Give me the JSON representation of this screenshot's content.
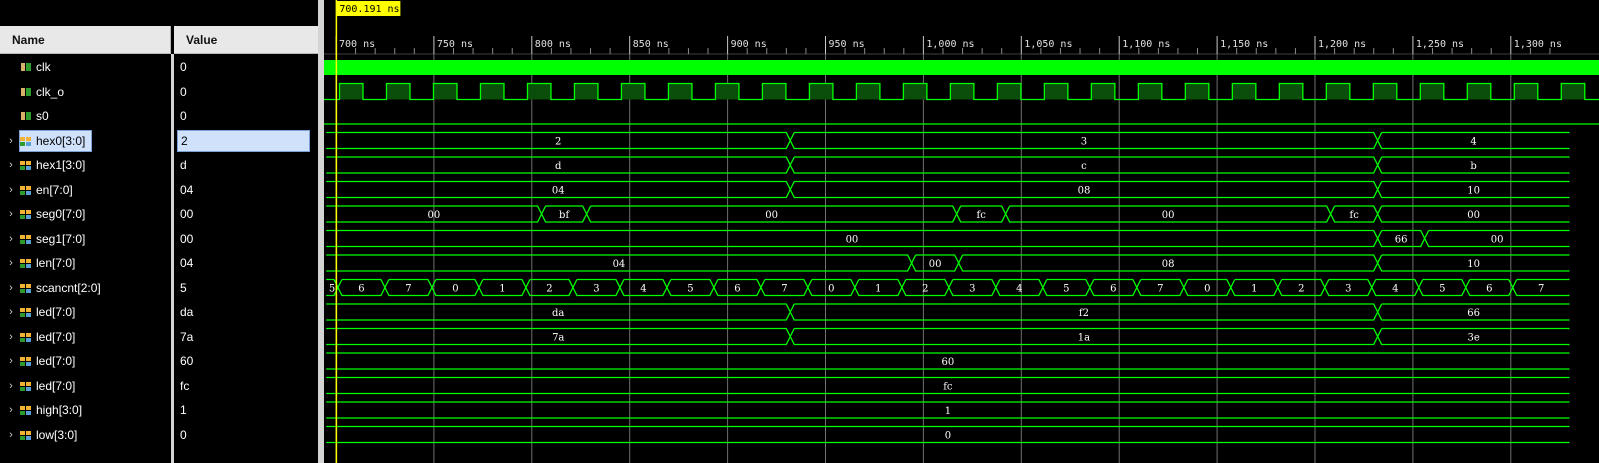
{
  "header": {
    "name_label": "Name",
    "value_label": "Value"
  },
  "cursor": {
    "time_label": "700.191 ns"
  },
  "timeline": {
    "ticks": [
      {
        "t": 700,
        "label": "700 ns"
      },
      {
        "t": 750,
        "label": "750 ns"
      },
      {
        "t": 800,
        "label": "800 ns"
      },
      {
        "t": 850,
        "label": "850 ns"
      },
      {
        "t": 900,
        "label": "900 ns"
      },
      {
        "t": 950,
        "label": "950 ns"
      },
      {
        "t": 1000,
        "label": "1,000 ns"
      },
      {
        "t": 1050,
        "label": "1,050 ns"
      },
      {
        "t": 1100,
        "label": "1,100 ns"
      },
      {
        "t": 1150,
        "label": "1,150 ns"
      },
      {
        "t": 1200,
        "label": "1,200 ns"
      },
      {
        "t": 1250,
        "label": "1,250 ns"
      },
      {
        "t": 1300,
        "label": "1,300 ns"
      }
    ]
  },
  "colors": {
    "wave": "#00ff00",
    "wave_fill": "#0b4d0b",
    "cursor": "#ffff00",
    "grid": "#707070",
    "bus_icon": "#f2b233",
    "bit_icon": "#2d9c2d",
    "selected_bg": "#cfe1fb"
  },
  "signals": [
    {
      "name": "clk",
      "value": "0",
      "kind": "bit",
      "icon": "bit-signal-icon",
      "clock": "fast",
      "expand": false
    },
    {
      "name": "clk_o",
      "value": "0",
      "kind": "bit",
      "icon": "bit-signal-icon",
      "clock": "slow",
      "expand": false
    },
    {
      "name": "s0",
      "value": "0",
      "kind": "bit",
      "icon": "bit-signal-icon",
      "flat": 0,
      "expand": false
    },
    {
      "name": "hex0[3:0]",
      "value": "2",
      "kind": "bus",
      "icon": "bus-signal-icon",
      "expand": true,
      "selected": true,
      "segments": [
        {
          "from": 695,
          "to": 932,
          "v": "2"
        },
        {
          "from": 932,
          "to": 1232,
          "v": "3"
        },
        {
          "from": 1232,
          "to": 1330,
          "v": "4"
        }
      ]
    },
    {
      "name": "hex1[3:0]",
      "value": "d",
      "kind": "bus",
      "icon": "bus-signal-icon",
      "expand": true,
      "segments": [
        {
          "from": 695,
          "to": 932,
          "v": "d"
        },
        {
          "from": 932,
          "to": 1232,
          "v": "c"
        },
        {
          "from": 1232,
          "to": 1330,
          "v": "b"
        }
      ]
    },
    {
      "name": "en[7:0]",
      "value": "04",
      "kind": "bus",
      "icon": "bus-signal-icon",
      "expand": true,
      "segments": [
        {
          "from": 695,
          "to": 932,
          "v": "04"
        },
        {
          "from": 932,
          "to": 1232,
          "v": "08"
        },
        {
          "from": 1232,
          "to": 1330,
          "v": "10"
        }
      ]
    },
    {
      "name": "seg0[7:0]",
      "value": "00",
      "kind": "bus",
      "icon": "bus-signal-icon",
      "expand": true,
      "segments": [
        {
          "from": 695,
          "to": 805,
          "v": "00"
        },
        {
          "from": 805,
          "to": 828,
          "v": "bf"
        },
        {
          "from": 828,
          "to": 1017,
          "v": "00"
        },
        {
          "from": 1017,
          "to": 1042,
          "v": "fc"
        },
        {
          "from": 1042,
          "to": 1208,
          "v": "00"
        },
        {
          "from": 1208,
          "to": 1232,
          "v": "fc"
        },
        {
          "from": 1232,
          "to": 1330,
          "v": "00"
        }
      ]
    },
    {
      "name": "seg1[7:0]",
      "value": "00",
      "kind": "bus",
      "icon": "bus-signal-icon",
      "expand": true,
      "segments": [
        {
          "from": 695,
          "to": 1232,
          "v": "00"
        },
        {
          "from": 1232,
          "to": 1256,
          "v": "66"
        },
        {
          "from": 1256,
          "to": 1330,
          "v": "00"
        }
      ]
    },
    {
      "name": "len[7:0]",
      "value": "04",
      "kind": "bus",
      "icon": "bus-signal-icon",
      "expand": true,
      "segments": [
        {
          "from": 695,
          "to": 994,
          "v": "04"
        },
        {
          "from": 994,
          "to": 1018,
          "v": "00"
        },
        {
          "from": 1018,
          "to": 1232,
          "v": "08"
        },
        {
          "from": 1232,
          "to": 1330,
          "v": "10"
        }
      ]
    },
    {
      "name": "scancnt[2:0]",
      "value": "5",
      "kind": "bus",
      "icon": "bus-signal-icon",
      "expand": true,
      "segments": [
        {
          "from": 695,
          "to": 701,
          "v": "5"
        },
        {
          "from": 701,
          "to": 725,
          "v": "6"
        },
        {
          "from": 725,
          "to": 749,
          "v": "7"
        },
        {
          "from": 749,
          "to": 773,
          "v": "0"
        },
        {
          "from": 773,
          "to": 797,
          "v": "1"
        },
        {
          "from": 797,
          "to": 821,
          "v": "2"
        },
        {
          "from": 821,
          "to": 845,
          "v": "3"
        },
        {
          "from": 845,
          "to": 869,
          "v": "4"
        },
        {
          "from": 869,
          "to": 893,
          "v": "5"
        },
        {
          "from": 893,
          "to": 917,
          "v": "6"
        },
        {
          "from": 917,
          "to": 941,
          "v": "7"
        },
        {
          "from": 941,
          "to": 965,
          "v": "0"
        },
        {
          "from": 965,
          "to": 989,
          "v": "1"
        },
        {
          "from": 989,
          "to": 1013,
          "v": "2"
        },
        {
          "from": 1013,
          "to": 1037,
          "v": "3"
        },
        {
          "from": 1037,
          "to": 1061,
          "v": "4"
        },
        {
          "from": 1061,
          "to": 1085,
          "v": "5"
        },
        {
          "from": 1085,
          "to": 1109,
          "v": "6"
        },
        {
          "from": 1109,
          "to": 1133,
          "v": "7"
        },
        {
          "from": 1133,
          "to": 1157,
          "v": "0"
        },
        {
          "from": 1157,
          "to": 1181,
          "v": "1"
        },
        {
          "from": 1181,
          "to": 1205,
          "v": "2"
        },
        {
          "from": 1205,
          "to": 1229,
          "v": "3"
        },
        {
          "from": 1229,
          "to": 1253,
          "v": "4"
        },
        {
          "from": 1253,
          "to": 1277,
          "v": "5"
        },
        {
          "from": 1277,
          "to": 1301,
          "v": "6"
        },
        {
          "from": 1301,
          "to": 1330,
          "v": "7"
        }
      ]
    },
    {
      "name": "led[7:0]",
      "value": "da",
      "kind": "bus",
      "icon": "bus-signal-icon",
      "expand": true,
      "segments": [
        {
          "from": 695,
          "to": 932,
          "v": "da"
        },
        {
          "from": 932,
          "to": 1232,
          "v": "f2"
        },
        {
          "from": 1232,
          "to": 1330,
          "v": "66"
        }
      ]
    },
    {
      "name": "led[7:0]",
      "value": "7a",
      "kind": "bus",
      "icon": "bus-signal-icon",
      "expand": true,
      "segments": [
        {
          "from": 695,
          "to": 932,
          "v": "7a"
        },
        {
          "from": 932,
          "to": 1232,
          "v": "1a"
        },
        {
          "from": 1232,
          "to": 1330,
          "v": "3e"
        }
      ]
    },
    {
      "name": "led[7:0]",
      "value": "60",
      "kind": "bus",
      "icon": "bus-signal-icon",
      "expand": true,
      "segments": [
        {
          "from": 695,
          "to": 1330,
          "v": "60"
        }
      ]
    },
    {
      "name": "led[7:0]",
      "value": "fc",
      "kind": "bus",
      "icon": "bus-signal-icon",
      "expand": true,
      "segments": [
        {
          "from": 695,
          "to": 1330,
          "v": "fc"
        }
      ]
    },
    {
      "name": "high[3:0]",
      "value": "1",
      "kind": "bus",
      "icon": "bus-signal-icon",
      "expand": true,
      "segments": [
        {
          "from": 695,
          "to": 1330,
          "v": "1"
        }
      ]
    },
    {
      "name": "low[3:0]",
      "value": "0",
      "kind": "bus",
      "icon": "bus-signal-icon",
      "expand": true,
      "segments": [
        {
          "from": 695,
          "to": 1330,
          "v": "0"
        }
      ]
    }
  ]
}
